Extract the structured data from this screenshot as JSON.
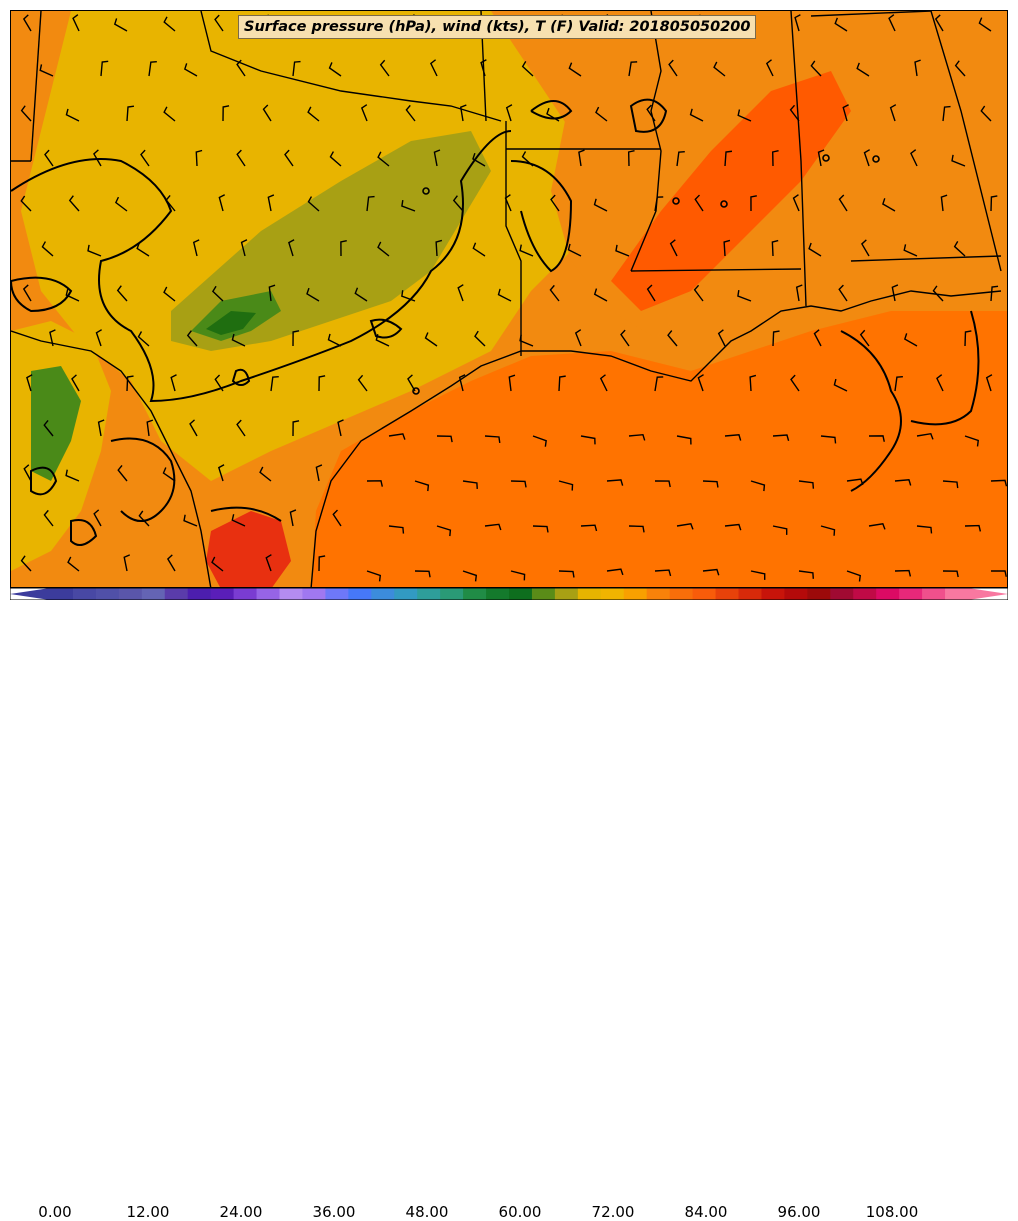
{
  "title": "Surface pressure (hPa), wind (kts), T (F) Valid: 201805050200",
  "colors": {
    "gulf": "#ff7300",
    "orange_land": "#f28a10",
    "dark_orange": "#ff5a00",
    "yellow": "#e8b400",
    "olive": "#a8a014",
    "green": "#4a8a18",
    "dark_green": "#1f6e10",
    "red": "#e83010",
    "outline": "#000000"
  },
  "colorbar": {
    "ticks": [
      "0.00",
      "12.00",
      "24.00",
      "36.00",
      "48.00",
      "60.00",
      "72.00",
      "84.00",
      "96.00",
      "108.00"
    ],
    "min": 0,
    "max": 120,
    "step": 3,
    "colors": [
      "#3c3c9c",
      "#4848a4",
      "#5050a8",
      "#5a56aa",
      "#6464b4",
      "#5a3caa",
      "#4c1eae",
      "#5a1eb8",
      "#7a3cd2",
      "#9664e6",
      "#b48cf0",
      "#a078f0",
      "#6e78f8",
      "#4678f8",
      "#3c8cdc",
      "#329ac2",
      "#2e9e9a",
      "#2a9a76",
      "#208c46",
      "#147a2c",
      "#0e6e1e",
      "#5a8c18",
      "#a8a014",
      "#e6b400",
      "#f0b400",
      "#f8a000",
      "#f8820a",
      "#f86e0a",
      "#f85c0a",
      "#e8420a",
      "#d82a0a",
      "#c8140a",
      "#b40a0a",
      "#9c0a0a",
      "#a00a32",
      "#c00a46",
      "#dc0a64",
      "#e8287a",
      "#f0508c",
      "#f878a0"
    ]
  }
}
